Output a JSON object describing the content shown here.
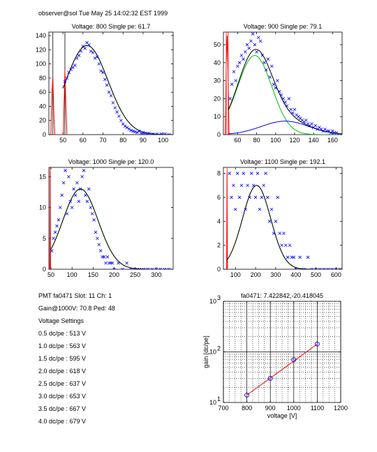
{
  "header": "observer@sol  Tue May 25 14:02:32 EST 1999",
  "info": {
    "line1": "PMT fa0471 Slot: 11 Ch: 1",
    "line2": "Gain@1000V: 70.8 Ped: 48",
    "line3": "Voltage Settings",
    "settings": [
      "0.5 dc/pe : 513 V",
      "1.0 dc/pe : 563 V",
      "1.5 dc/pe : 595 V",
      "2.0 dc/pe : 618 V",
      "2.5 dc/pe : 637 V",
      "3.0 dc/pe : 653 V",
      "3.5 dc/pe : 667 V",
      "4.0 dc/pe : 679 V"
    ]
  },
  "colors": {
    "data": "#0000ff",
    "fit": "#000000",
    "component": "#00c000",
    "pedestal": "#ff0000",
    "gainline": "#ff0000"
  },
  "chart_data": [
    {
      "type": "scatter",
      "title": "Voltage: 800 Single pe: 61.7",
      "xlim": [
        43,
        105
      ],
      "ylim": [
        0,
        145
      ],
      "xticks": [
        50,
        60,
        70,
        80,
        90,
        100
      ],
      "yticks": [
        0,
        20,
        40,
        60,
        80,
        100,
        120,
        140
      ],
      "vlines": [
        {
          "x": 45,
          "color": "black"
        },
        {
          "x": 51,
          "color": "black"
        }
      ],
      "pedestal": [
        [
          44,
          0
        ],
        [
          44.5,
          60
        ],
        [
          45,
          80
        ],
        [
          45.6,
          20
        ],
        [
          46,
          0
        ],
        [
          50.2,
          0
        ],
        [
          51,
          90
        ],
        [
          51.5,
          40
        ],
        [
          52,
          0
        ]
      ],
      "points": [
        [
          51,
          75
        ],
        [
          52,
          80
        ],
        [
          53,
          88
        ],
        [
          54,
          92
        ],
        [
          55,
          95
        ],
        [
          56,
          98
        ],
        [
          57,
          108
        ],
        [
          58,
          112
        ],
        [
          59,
          118
        ],
        [
          60,
          125
        ],
        [
          61,
          122
        ],
        [
          62,
          130
        ],
        [
          63,
          127
        ],
        [
          64,
          118
        ],
        [
          65,
          116
        ],
        [
          66,
          108
        ],
        [
          67,
          110
        ],
        [
          68,
          100
        ],
        [
          69,
          90
        ],
        [
          70,
          88
        ],
        [
          71,
          78
        ],
        [
          72,
          70
        ],
        [
          73,
          60
        ],
        [
          74,
          55
        ],
        [
          75,
          45
        ],
        [
          76,
          38
        ],
        [
          77,
          32
        ],
        [
          78,
          26
        ],
        [
          79,
          20
        ],
        [
          80,
          15
        ],
        [
          81,
          12
        ],
        [
          82,
          10
        ],
        [
          83,
          8
        ],
        [
          84,
          6
        ],
        [
          85,
          5
        ],
        [
          86,
          4
        ],
        [
          87,
          3
        ],
        [
          88,
          5
        ],
        [
          89,
          2
        ],
        [
          90,
          3
        ],
        [
          91,
          2
        ],
        [
          92,
          1
        ],
        [
          93,
          2
        ],
        [
          95,
          1
        ],
        [
          97,
          1
        ],
        [
          99,
          1
        ],
        [
          101,
          1
        ],
        [
          103,
          0
        ]
      ],
      "fit": {
        "amp": 126,
        "mu": 62,
        "sigma": 10.5,
        "from": 50,
        "to": 105
      },
      "component": {
        "amp": 126,
        "mu": 62,
        "sigma": 10.5,
        "from": 50,
        "to": 105
      }
    },
    {
      "type": "scatter",
      "title": "Voltage: 900 Single pe: 79.1",
      "xlim": [
        45,
        170
      ],
      "ylim": [
        0,
        57
      ],
      "xticks": [
        60,
        80,
        100,
        120,
        140,
        160
      ],
      "yticks": [
        0,
        10,
        20,
        30,
        40,
        50
      ],
      "vlines": [
        {
          "x": 48,
          "color": "red"
        },
        {
          "x": 50,
          "color": "red"
        }
      ],
      "pedestal": [
        [
          47,
          0
        ],
        [
          48,
          40
        ],
        [
          49,
          55
        ],
        [
          50,
          30
        ],
        [
          51,
          0
        ]
      ],
      "points": [
        [
          52,
          20
        ],
        [
          54,
          28
        ],
        [
          56,
          35
        ],
        [
          58,
          30
        ],
        [
          60,
          38
        ],
        [
          62,
          40
        ],
        [
          64,
          44
        ],
        [
          66,
          42
        ],
        [
          68,
          46
        ],
        [
          70,
          50
        ],
        [
          72,
          48
        ],
        [
          74,
          52
        ],
        [
          76,
          56
        ],
        [
          78,
          50
        ],
        [
          80,
          46
        ],
        [
          82,
          54
        ],
        [
          84,
          52
        ],
        [
          86,
          44
        ],
        [
          88,
          40
        ],
        [
          90,
          36
        ],
        [
          92,
          42
        ],
        [
          94,
          32
        ],
        [
          96,
          38
        ],
        [
          98,
          28
        ],
        [
          100,
          26
        ],
        [
          102,
          30
        ],
        [
          104,
          24
        ],
        [
          106,
          22
        ],
        [
          108,
          20
        ],
        [
          110,
          18
        ],
        [
          112,
          16
        ],
        [
          114,
          20
        ],
        [
          116,
          14
        ],
        [
          118,
          12
        ],
        [
          120,
          14
        ],
        [
          122,
          11
        ],
        [
          124,
          10
        ],
        [
          126,
          9
        ],
        [
          128,
          8
        ],
        [
          130,
          7
        ],
        [
          132,
          8
        ],
        [
          134,
          6
        ],
        [
          136,
          5
        ],
        [
          138,
          6
        ],
        [
          140,
          4
        ],
        [
          142,
          5
        ],
        [
          144,
          3
        ],
        [
          146,
          4
        ],
        [
          148,
          3
        ],
        [
          150,
          2
        ],
        [
          152,
          3
        ],
        [
          154,
          2
        ],
        [
          156,
          2
        ],
        [
          158,
          1
        ],
        [
          160,
          2
        ],
        [
          162,
          1
        ],
        [
          164,
          1
        ],
        [
          166,
          0
        ]
      ],
      "fit": {
        "amp": 44,
        "mu": 78,
        "sigma": 18,
        "from": 50,
        "to": 170,
        "amp2": 7.5,
        "mu2": 110,
        "sigma2": 25
      },
      "component": {
        "amp": 44,
        "mu": 78,
        "sigma": 18,
        "from": 50,
        "to": 170
      },
      "component2": {
        "amp": 7.5,
        "mu": 110,
        "sigma": 25,
        "from": 50,
        "to": 170
      }
    },
    {
      "type": "scatter",
      "title": "Voltage: 1000 Single pe: 120.0",
      "xlim": [
        45,
        340
      ],
      "ylim": [
        0,
        16.5
      ],
      "xticks": [
        50,
        100,
        150,
        200,
        250,
        300
      ],
      "yticks": [
        0,
        5,
        10,
        15
      ],
      "vlines": [
        {
          "x": 48,
          "color": "red"
        }
      ],
      "pedestal": [
        [
          47,
          0
        ],
        [
          48,
          16
        ],
        [
          49,
          0
        ]
      ],
      "points": [
        [
          52,
          3
        ],
        [
          56,
          5
        ],
        [
          60,
          6
        ],
        [
          64,
          7
        ],
        [
          68,
          8
        ],
        [
          72,
          10
        ],
        [
          76,
          12
        ],
        [
          80,
          14
        ],
        [
          84,
          16
        ],
        [
          88,
          9
        ],
        [
          92,
          15
        ],
        [
          96,
          11
        ],
        [
          100,
          10
        ],
        [
          104,
          13
        ],
        [
          108,
          12
        ],
        [
          112,
          14
        ],
        [
          116,
          11
        ],
        [
          120,
          13
        ],
        [
          124,
          15
        ],
        [
          128,
          16
        ],
        [
          132,
          12
        ],
        [
          136,
          11
        ],
        [
          140,
          13
        ],
        [
          144,
          10
        ],
        [
          148,
          9
        ],
        [
          152,
          8
        ],
        [
          156,
          6
        ],
        [
          160,
          5
        ],
        [
          164,
          4
        ],
        [
          168,
          3
        ],
        [
          172,
          2
        ],
        [
          176,
          2
        ],
        [
          180,
          1
        ],
        [
          184,
          2
        ],
        [
          188,
          1
        ],
        [
          192,
          1
        ],
        [
          196,
          1
        ],
        [
          200,
          0
        ],
        [
          210,
          1
        ],
        [
          220,
          0
        ],
        [
          230,
          1
        ],
        [
          240,
          0
        ],
        [
          250,
          0
        ],
        [
          260,
          0
        ],
        [
          270,
          0
        ],
        [
          280,
          0
        ],
        [
          290,
          0
        ],
        [
          300,
          0
        ],
        [
          310,
          0
        ],
        [
          320,
          0
        ],
        [
          330,
          0
        ]
      ],
      "fit": {
        "amp": 13,
        "mu": 120,
        "sigma": 42,
        "from": 50,
        "to": 340
      },
      "component": {
        "amp": 13,
        "mu": 120,
        "sigma": 42,
        "from": 50,
        "to": 340
      }
    },
    {
      "type": "scatter",
      "title": "Voltage: 1100 Single pe: 192.1",
      "xlim": [
        40,
        630
      ],
      "ylim": [
        0,
        8.5
      ],
      "xticks": [
        100,
        200,
        300,
        400,
        500,
        600
      ],
      "yticks": [
        0,
        2,
        4,
        6,
        8
      ],
      "vlines": [
        {
          "x": 58,
          "color": "red"
        }
      ],
      "pedestal": [
        [
          56,
          0
        ],
        [
          58,
          8
        ],
        [
          60,
          0
        ]
      ],
      "points": [
        [
          70,
          8
        ],
        [
          80,
          6
        ],
        [
          90,
          7
        ],
        [
          100,
          5
        ],
        [
          110,
          8
        ],
        [
          120,
          6
        ],
        [
          130,
          7
        ],
        [
          140,
          8
        ],
        [
          150,
          5
        ],
        [
          160,
          7
        ],
        [
          170,
          6
        ],
        [
          180,
          8
        ],
        [
          190,
          7
        ],
        [
          200,
          6
        ],
        [
          210,
          8
        ],
        [
          220,
          5
        ],
        [
          230,
          6
        ],
        [
          240,
          7
        ],
        [
          250,
          8
        ],
        [
          260,
          6
        ],
        [
          270,
          4
        ],
        [
          280,
          5
        ],
        [
          290,
          3
        ],
        [
          300,
          4
        ],
        [
          310,
          6
        ],
        [
          320,
          3
        ],
        [
          330,
          2
        ],
        [
          340,
          3
        ],
        [
          350,
          2
        ],
        [
          360,
          1
        ],
        [
          370,
          2
        ],
        [
          380,
          1
        ],
        [
          390,
          1
        ],
        [
          400,
          0
        ],
        [
          420,
          1
        ],
        [
          440,
          0
        ],
        [
          460,
          1
        ],
        [
          480,
          0
        ],
        [
          500,
          0
        ],
        [
          520,
          0
        ],
        [
          540,
          0
        ],
        [
          560,
          0
        ],
        [
          580,
          0
        ],
        [
          600,
          0
        ],
        [
          620,
          0
        ]
      ],
      "fit": {
        "amp": 7,
        "mu": 205,
        "sigma": 70,
        "from": 58,
        "to": 630
      },
      "component": {
        "amp": 7,
        "mu": 205,
        "sigma": 70,
        "from": 58,
        "to": 630
      }
    },
    {
      "type": "line",
      "title": "fa0471: 7.422842,-20.418045",
      "xlabel": "voltage [V]",
      "ylabel": "gain [dc/pe]",
      "xscale": "linear",
      "yscale": "log",
      "xlim": [
        700,
        1200
      ],
      "ylim": [
        10,
        1000
      ],
      "xticks": [
        700,
        800,
        900,
        1000,
        1100,
        1200
      ],
      "yticks": [
        10,
        100,
        1000
      ],
      "ytick_labels": [
        "10",
        "10",
        "10"
      ],
      "ytick_exps": [
        "1",
        "2",
        "3"
      ],
      "points": [
        [
          800,
          14
        ],
        [
          900,
          30
        ],
        [
          1000,
          70
        ],
        [
          1100,
          143
        ]
      ],
      "line": {
        "from": 800,
        "to": 1100,
        "slope": 7.422842,
        "intercept": -20.418045
      }
    }
  ]
}
